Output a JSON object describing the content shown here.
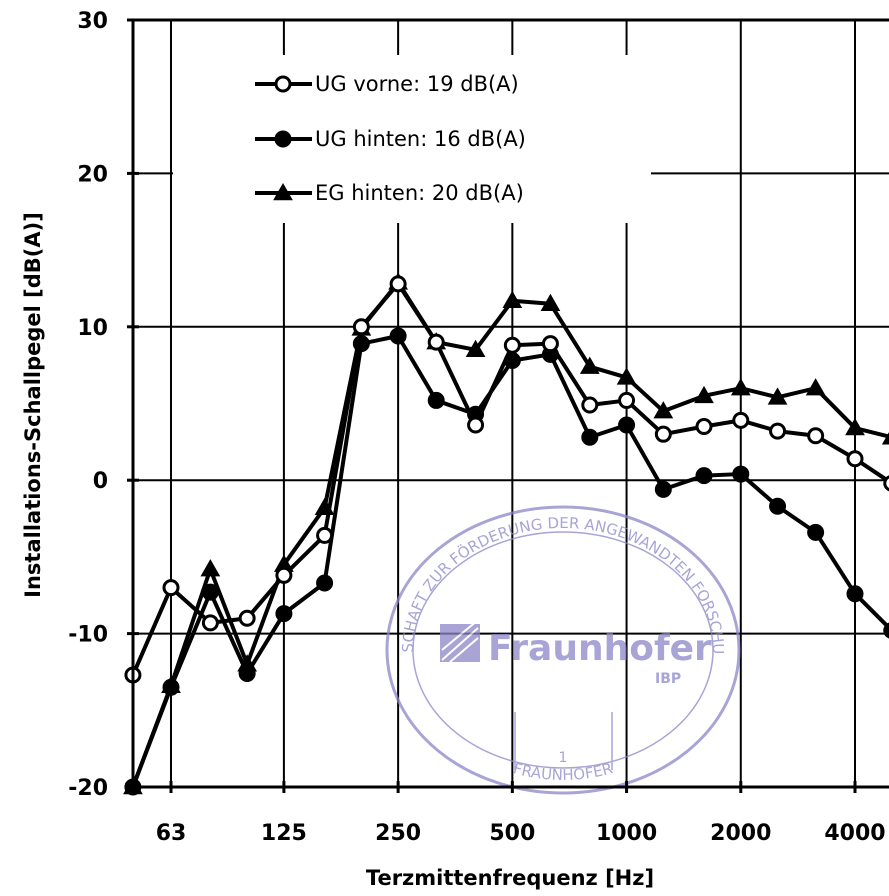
{
  "chart_data": {
    "type": "line",
    "xlabel": "Terzmittenfrequenz [Hz]",
    "ylabel": "Installations-Schallpegel [dB(A)]",
    "x_scale": "log",
    "x_tick_labels": [
      "63",
      "125",
      "250",
      "500",
      "1000",
      "2000",
      "4000"
    ],
    "x_tick_values": [
      63,
      125,
      250,
      500,
      1000,
      2000,
      4000
    ],
    "y_ticks": [
      30,
      20,
      10,
      0,
      -10,
      -20
    ],
    "ylim": [
      -20,
      30
    ],
    "grid": true,
    "legend_position": "top-left",
    "x": [
      50,
      63,
      80,
      100,
      125,
      160,
      200,
      250,
      315,
      400,
      500,
      630,
      800,
      1000,
      1250,
      1600,
      2000,
      2500,
      3150,
      4000,
      5000
    ],
    "series": [
      {
        "name": "UG vorne: 19 dB(A)",
        "marker": "open-circle",
        "values": [
          -12.7,
          -7.0,
          -9.3,
          -9.0,
          -6.2,
          -3.6,
          10.0,
          12.8,
          9.0,
          3.6,
          8.8,
          8.9,
          4.9,
          5.2,
          3.0,
          3.5,
          3.9,
          3.2,
          2.9,
          1.4,
          -0.2
        ]
      },
      {
        "name": "UG hinten: 16 dB(A)",
        "marker": "filled-circle",
        "values": [
          -20.0,
          -13.5,
          -7.3,
          -12.6,
          -8.7,
          -6.7,
          8.9,
          9.4,
          5.2,
          4.3,
          7.8,
          8.2,
          2.8,
          3.6,
          -0.6,
          0.3,
          0.4,
          -1.7,
          -3.4,
          -7.4,
          -9.8
        ]
      },
      {
        "name": "EG hinten: 20 dB(A)",
        "marker": "filled-triangle",
        "values": [
          -20.0,
          -13.4,
          -5.8,
          -12.0,
          -5.5,
          -1.8,
          9.9,
          12.9,
          9.0,
          8.5,
          11.7,
          11.5,
          7.4,
          6.7,
          4.5,
          5.5,
          6.0,
          5.4,
          6.0,
          3.4,
          2.8
        ]
      }
    ]
  },
  "watermark": {
    "outer_ring_text": "GESELLSCHAFT ZUR FÖRDERUNG DER ANGEWANDTEN FORSCHUNG E.V.",
    "prefix_text": "FRAUNHOFER",
    "brand": "Fraunhofer",
    "institute": "IBP",
    "number": "1",
    "color": "#8c86c9"
  }
}
